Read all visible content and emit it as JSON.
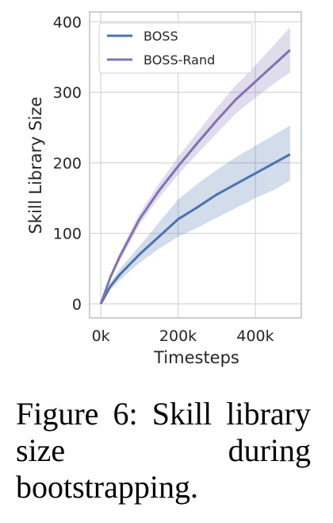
{
  "chart_data": {
    "type": "line",
    "x": [
      0,
      25000,
      50000,
      100000,
      150000,
      200000,
      250000,
      300000,
      350000,
      400000,
      450000,
      490000
    ],
    "series": [
      {
        "name": "BOSS",
        "color": "#4c72b0",
        "values": [
          0,
          25,
          42,
          70,
          95,
          120,
          137,
          155,
          170,
          185,
          200,
          212
        ],
        "lower": [
          0,
          20,
          34,
          58,
          78,
          95,
          108,
          122,
          136,
          150,
          162,
          175
        ],
        "upper": [
          0,
          30,
          50,
          82,
          115,
          148,
          170,
          190,
          208,
          224,
          240,
          253
        ]
      },
      {
        "name": "BOSS-Rand",
        "color": "#8172b3",
        "values": [
          0,
          38,
          68,
          120,
          160,
          195,
          228,
          260,
          290,
          315,
          340,
          360
        ],
        "lower": [
          0,
          35,
          62,
          112,
          150,
          183,
          213,
          242,
          270,
          292,
          313,
          328
        ],
        "upper": [
          0,
          41,
          73,
          128,
          170,
          208,
          243,
          278,
          310,
          338,
          368,
          392
        ]
      }
    ],
    "xlabel": "Timesteps",
    "ylabel": "Skill Library Size",
    "xlim": [
      -29000,
      519000
    ],
    "ylim": [
      -20,
      414
    ],
    "xticks": [
      {
        "value": 0,
        "label": "0k"
      },
      {
        "value": 200000,
        "label": "200k"
      },
      {
        "value": 400000,
        "label": "400k"
      }
    ],
    "yticks": [
      0,
      100,
      200,
      300,
      400
    ],
    "grid": true,
    "legend": "upper left",
    "caption": "Figure 6:  Skill library size during bootstrapping."
  }
}
